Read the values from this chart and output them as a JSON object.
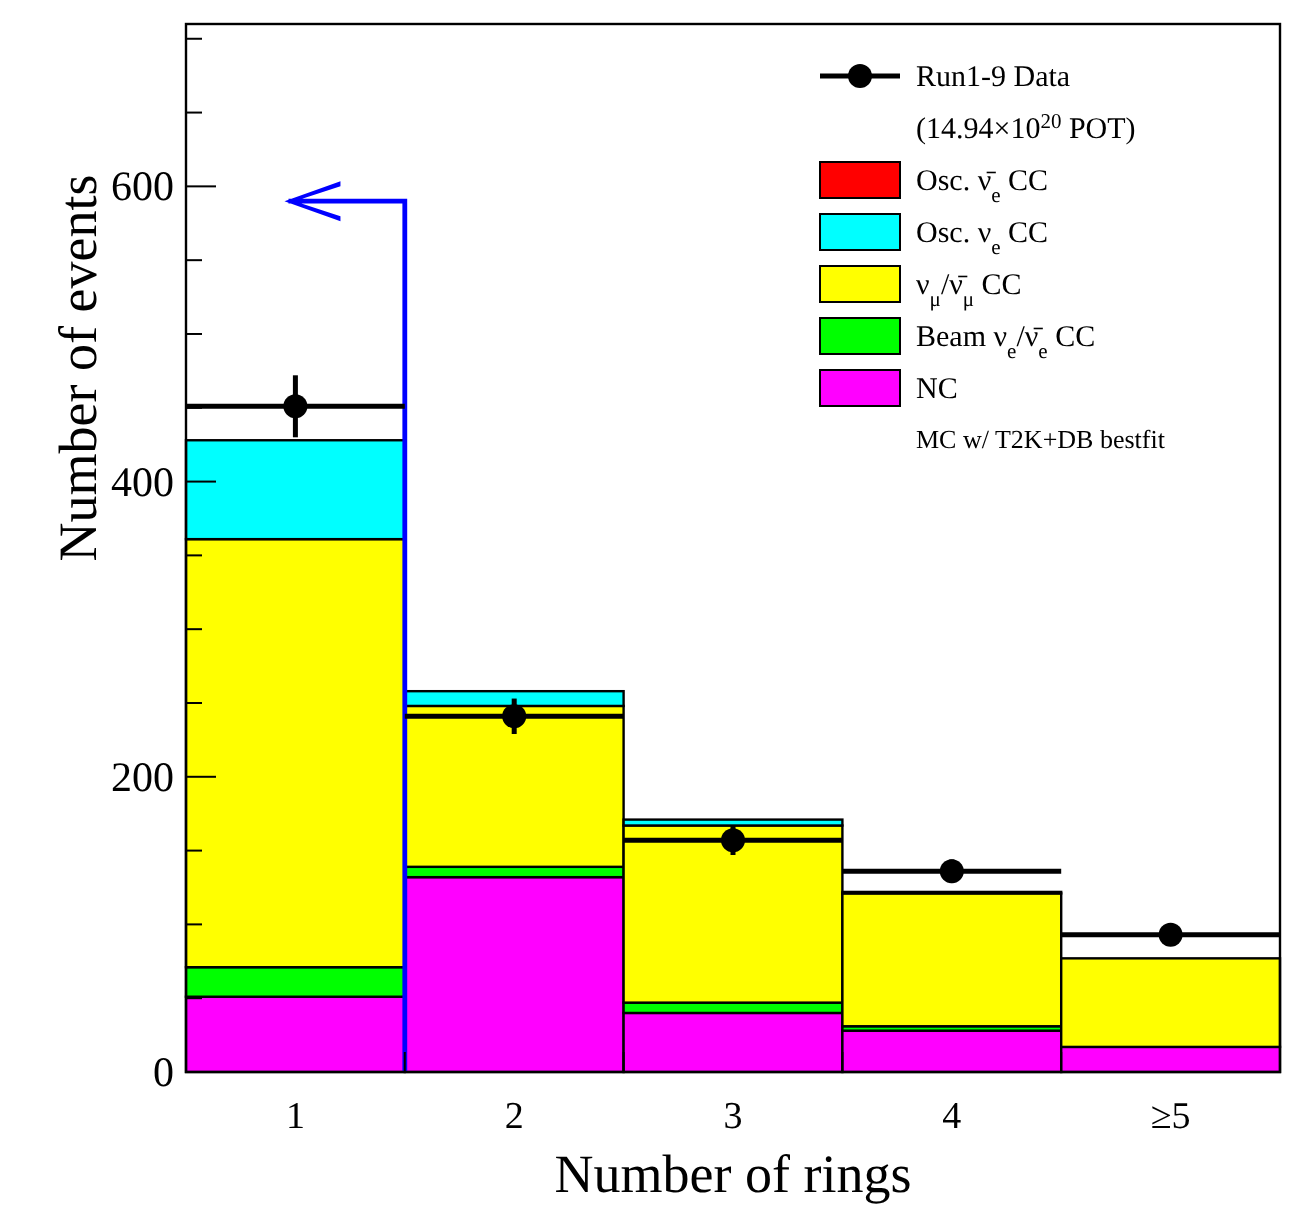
{
  "chart_data": {
    "type": "bar",
    "stacked": true,
    "xlabel": "Number of rings",
    "ylabel": "Number of events",
    "x": [
      1,
      2,
      3,
      4,
      5
    ],
    "xlim": [
      0.5,
      5.5
    ],
    "xticks": [
      1,
      2,
      3,
      4,
      {
        "value": 5,
        "label": "≥5"
      }
    ],
    "ylim": [
      0,
      710
    ],
    "yticks": [
      0,
      {
        "value": 50,
        "label": null
      },
      {
        "value": 100,
        "label": null
      },
      {
        "value": 150,
        "label": null
      },
      200,
      {
        "value": 250,
        "label": null
      },
      {
        "value": 300,
        "label": null
      },
      {
        "value": 350,
        "label": null
      },
      400,
      {
        "value": 450,
        "label": null
      },
      {
        "value": 500,
        "label": null
      },
      {
        "value": 550,
        "label": null
      },
      600,
      {
        "value": 650,
        "label": null
      },
      {
        "value": 700,
        "label": null
      }
    ],
    "series": [
      {
        "name": "NC",
        "color": "#ff00ff",
        "values": [
          51,
          132,
          40,
          28,
          17
        ]
      },
      {
        "name": "Beam ν$_{e}$/ν̄$_{e}$ CC",
        "color": "#00ff00",
        "values": [
          20,
          7,
          7,
          3,
          null
        ]
      },
      {
        "name": "ν$_{μ}$/ν̄$_{μ}$ CC",
        "color": "#ffff00",
        "values": [
          290,
          109,
          120,
          90,
          60
        ]
      },
      {
        "name": "Osc. ν$_{e}$ CC",
        "color": "#00ffff",
        "values": [
          67,
          10,
          4,
          1,
          0
        ]
      },
      {
        "name": "Osc. ν̄$_{e}$ CC",
        "color": "#ff0000",
        "values": [
          0,
          0,
          0,
          0,
          0
        ]
      },
      {
        "name": "Run1-9 Data",
        "type": "scatter",
        "color": "#000000",
        "marker": "circle",
        "x": [
          1,
          2,
          3,
          4,
          5
        ],
        "values": [
          451,
          241,
          157,
          136,
          93
        ],
        "errors": [
          21,
          12,
          10,
          8,
          6
        ],
        "xerrors": [
          0.5,
          0.5,
          0.5,
          0.5,
          0.5
        ]
      }
    ],
    "legend": "top right",
    "annotations": [
      "(14.94×10$^{20}$ POT)",
      "MC w/ T2K+DB bestfit"
    ]
  }
}
